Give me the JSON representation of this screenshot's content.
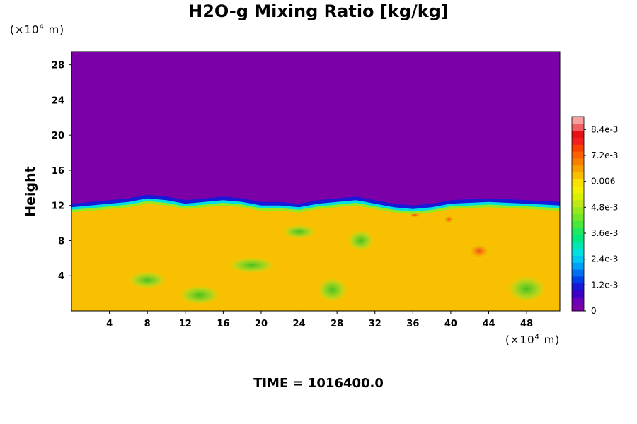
{
  "title": "H2O-g Mixing Ratio [kg/kg]",
  "time_label": "TIME = 1016400.0",
  "y_unit": {
    "prefix": "(×10",
    "exp": "4",
    "suffix": " m)"
  },
  "x_unit": {
    "prefix": "(×10",
    "exp": "4",
    "suffix": " m)"
  },
  "chart_data": {
    "type": "heatmap",
    "title": "H2O-g Mixing Ratio [kg/kg]",
    "xlabel": "",
    "ylabel": "Height",
    "x_unit": "(×10^4 m)",
    "y_unit": "(×10^4 m)",
    "xlim": [
      0,
      51.5
    ],
    "ylim": [
      0,
      29.5
    ],
    "x_ticks": [
      4,
      8,
      12,
      16,
      20,
      24,
      28,
      32,
      36,
      40,
      44,
      48
    ],
    "y_ticks": [
      4,
      8,
      12,
      16,
      20,
      24,
      28
    ],
    "colorbar": {
      "min": 0,
      "max": 0.009,
      "tick_values": [
        0,
        0.0012,
        0.0024,
        0.0036,
        0.0048,
        0.006,
        0.0072,
        0.0084
      ],
      "tick_labels": [
        "0",
        "1.2e-3",
        "2.4e-3",
        "3.6e-3",
        "4.8e-3",
        "0.006",
        "7.2e-3",
        "8.4e-3"
      ],
      "colors": [
        "#7b00a8",
        "#6a00b8",
        "#3c00c8",
        "#1818d8",
        "#0040e8",
        "#0070f0",
        "#00a0f8",
        "#00c8f0",
        "#00e0e0",
        "#00e8b0",
        "#00e880",
        "#20e860",
        "#48e838",
        "#70e828",
        "#98e820",
        "#c0e818",
        "#d8f000",
        "#f0f000",
        "#f8e000",
        "#f8c000",
        "#f8a000",
        "#f88000",
        "#f86000",
        "#f84000",
        "#f02020",
        "#e81010",
        "#f06060",
        "#f8a0a0"
      ]
    },
    "field": {
      "upper_value": 0,
      "interface_height": [
        11.2,
        11.4,
        11.6,
        11.8,
        12.2,
        12.0,
        11.6,
        11.8,
        12.0,
        11.8,
        11.4,
        11.4,
        11.2,
        11.6,
        11.8,
        12.0,
        11.6,
        11.2,
        11.0,
        11.2,
        11.6,
        11.8,
        11.6,
        11.4
      ],
      "interface_x": [
        0,
        2,
        4,
        6,
        8,
        10,
        12,
        14,
        16,
        18,
        20,
        22,
        24,
        26,
        28,
        30,
        32,
        34,
        36,
        38,
        40,
        44,
        48,
        51.5
      ],
      "lower_value": 0.0062
    }
  }
}
